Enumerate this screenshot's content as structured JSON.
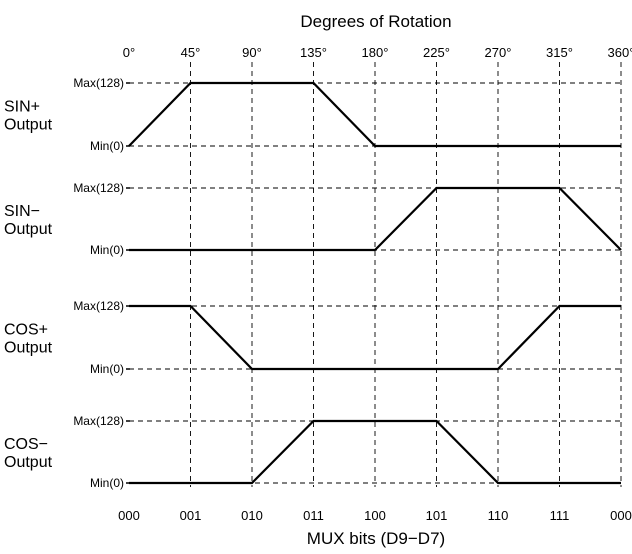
{
  "title": "Degrees of Rotation",
  "bottom_title": "MUX bits (D9−D7)",
  "degree_ticks": [
    "0°",
    "45°",
    "90°",
    "135°",
    "180°",
    "225°",
    "270°",
    "315°",
    "360°"
  ],
  "mux_ticks": [
    "000",
    "001",
    "010",
    "011",
    "100",
    "101",
    "110",
    "111",
    "000"
  ],
  "level_labels": {
    "max": "Max(128)",
    "min": "Min(0)"
  },
  "chart_data": {
    "type": "line",
    "x": [
      0,
      45,
      90,
      135,
      180,
      225,
      270,
      315,
      360
    ],
    "series": [
      {
        "name": "SIN+ Output",
        "line1": "SIN+",
        "line2": "Output",
        "values": [
          0,
          128,
          128,
          128,
          0,
          0,
          0,
          0,
          0
        ]
      },
      {
        "name": "SIN− Output",
        "line1": "SIN−",
        "line2": "Output",
        "values": [
          0,
          0,
          0,
          0,
          0,
          128,
          128,
          128,
          0
        ]
      },
      {
        "name": "COS+ Output",
        "line1": "COS+",
        "line2": "Output",
        "values": [
          128,
          128,
          0,
          0,
          0,
          0,
          0,
          128,
          128
        ]
      },
      {
        "name": "COS− Output",
        "line1": "COS−",
        "line2": "Output",
        "values": [
          0,
          0,
          0,
          128,
          128,
          128,
          0,
          0,
          0
        ]
      }
    ]
  }
}
